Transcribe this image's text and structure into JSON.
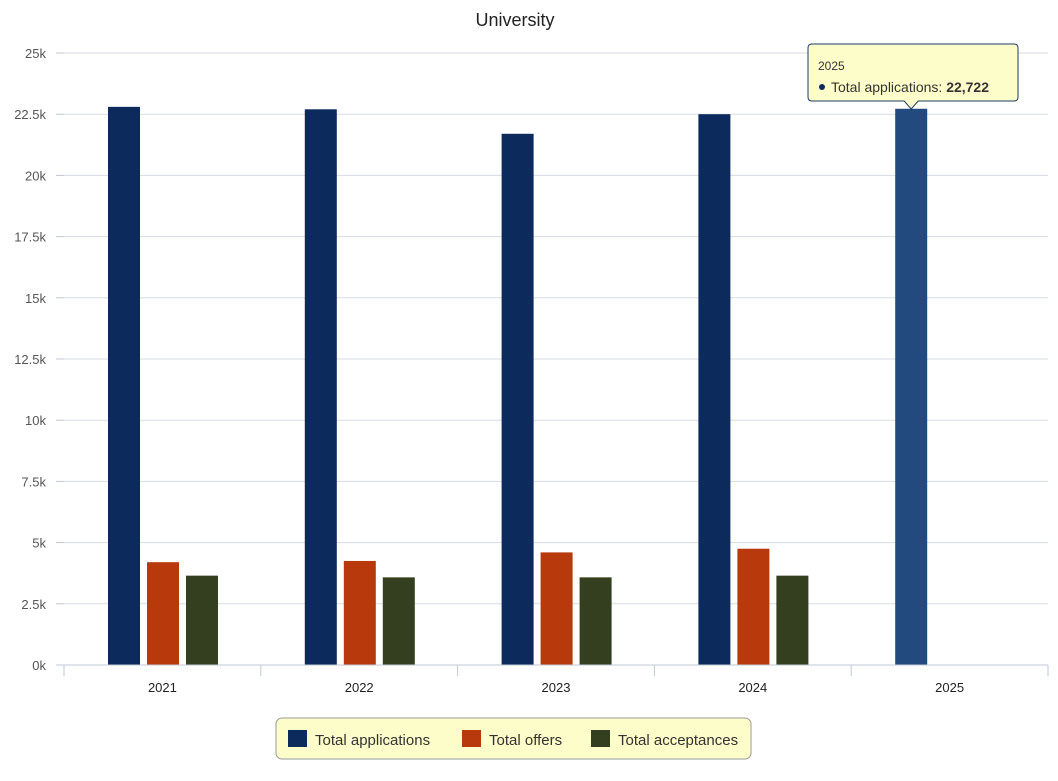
{
  "chart_data": {
    "type": "bar",
    "title": "University",
    "categories": [
      "2021",
      "2022",
      "2023",
      "2024",
      "2025"
    ],
    "series": [
      {
        "name": "Total applications",
        "color": "#0d2a5c",
        "values": [
          22800,
          22700,
          21700,
          22500,
          22722
        ]
      },
      {
        "name": "Total offers",
        "color": "#b8390b",
        "values": [
          4200,
          4250,
          4600,
          4750,
          null
        ]
      },
      {
        "name": "Total acceptances",
        "color": "#333f1f",
        "values": [
          3650,
          3580,
          3580,
          3650,
          null
        ]
      }
    ],
    "ylim": [
      0,
      25000
    ],
    "y_ticks": [
      {
        "value": 0,
        "label": "0k"
      },
      {
        "value": 2500,
        "label": "2.5k"
      },
      {
        "value": 5000,
        "label": "5k"
      },
      {
        "value": 7500,
        "label": "7.5k"
      },
      {
        "value": 10000,
        "label": "10k"
      },
      {
        "value": 12500,
        "label": "12.5k"
      },
      {
        "value": 15000,
        "label": "15k"
      },
      {
        "value": 17500,
        "label": "17.5k"
      },
      {
        "value": 20000,
        "label": "20k"
      },
      {
        "value": 22500,
        "label": "22.5k"
      },
      {
        "value": 25000,
        "label": "25k"
      }
    ],
    "grid": true,
    "legend_position": "bottom",
    "highlighted": {
      "category_index": 4,
      "series_index": 0,
      "color": "#234a7e"
    },
    "tooltip": {
      "title": "2025",
      "series_label": "Total applications",
      "value_text": "22,722"
    }
  }
}
